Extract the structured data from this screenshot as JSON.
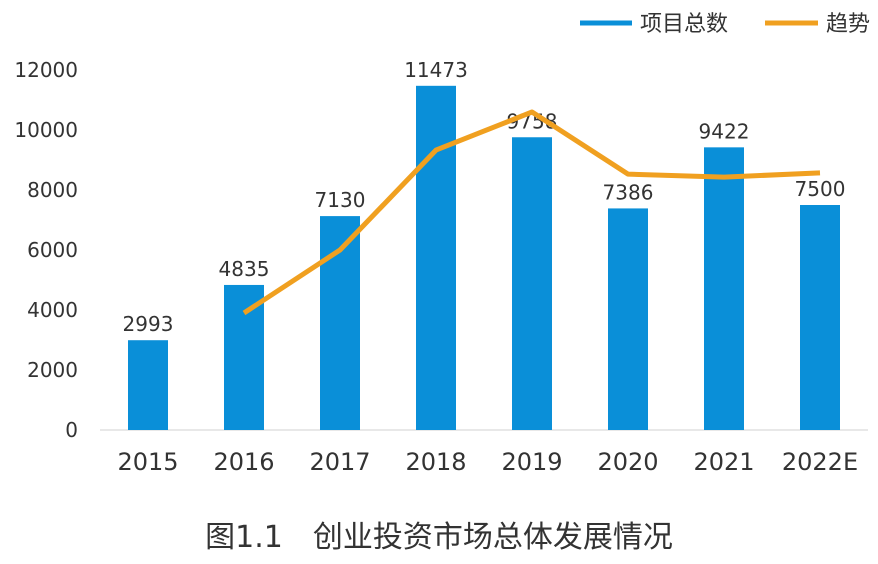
{
  "chart_data": {
    "type": "bar",
    "title": "",
    "caption": "图1.1　创业投资市场总体发展情况",
    "xlabel": "",
    "ylabel": "",
    "categories": [
      "2015",
      "2016",
      "2017",
      "2018",
      "2019",
      "2020",
      "2021",
      "2022E"
    ],
    "ylim": [
      0,
      12000
    ],
    "yticks": [
      0,
      2000,
      4000,
      6000,
      8000,
      10000,
      12000
    ],
    "grid": false,
    "legend_position": "top-right",
    "series": [
      {
        "name": "项目总数",
        "type": "bar",
        "color": "#0a8fd8",
        "values": [
          2993,
          4835,
          7130,
          11473,
          9758,
          7386,
          9422,
          7500
        ],
        "labels": [
          "2993",
          "4835",
          "7130",
          "11473",
          "9758",
          "7386",
          "9422",
          "7500"
        ]
      },
      {
        "name": "趋势",
        "type": "line",
        "color": "#f0a020",
        "values": [
          null,
          3900,
          6000,
          9330,
          10600,
          8530,
          8430,
          8570
        ]
      }
    ]
  }
}
